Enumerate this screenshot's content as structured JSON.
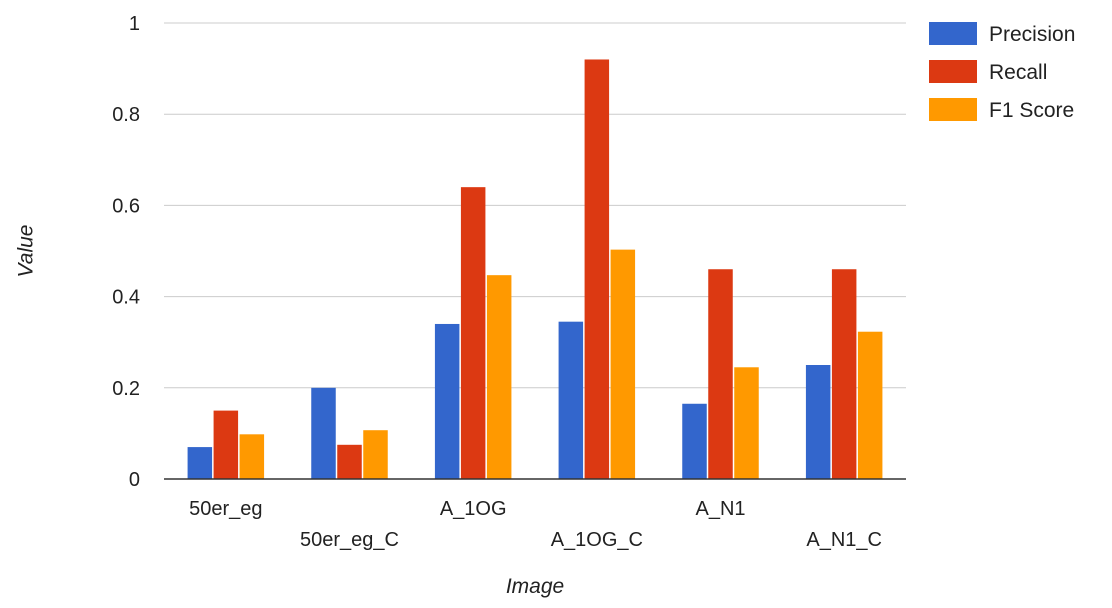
{
  "chart_data": {
    "type": "bar",
    "title": "",
    "xlabel": "Image",
    "ylabel": "Value",
    "ylim": [
      0,
      1
    ],
    "yticks": [
      0,
      0.2,
      0.4,
      0.6,
      0.8,
      1
    ],
    "ytick_labels": [
      "0",
      "0.2",
      "0.4",
      "0.6",
      "0.8",
      "1"
    ],
    "grid": true,
    "legend_position": "top-right",
    "categories": [
      "50er_eg",
      "50er_eg_C",
      "A_1OG",
      "A_1OG_C",
      "A_N1",
      "A_N1_C"
    ],
    "series": [
      {
        "name": "Precision",
        "color": "#3366cc",
        "values": [
          0.07,
          0.2,
          0.34,
          0.345,
          0.165,
          0.25
        ]
      },
      {
        "name": "Recall",
        "color": "#dc3912",
        "values": [
          0.15,
          0.075,
          0.64,
          0.92,
          0.46,
          0.46
        ]
      },
      {
        "name": "F1 Score",
        "color": "#ff9900",
        "values": [
          0.098,
          0.107,
          0.447,
          0.503,
          0.245,
          0.323
        ]
      }
    ]
  }
}
